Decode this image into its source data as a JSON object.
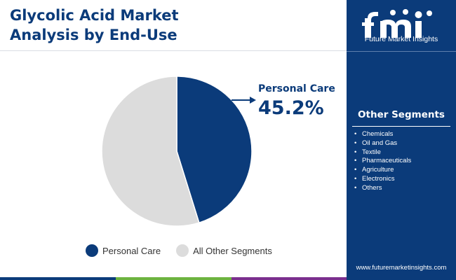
{
  "header": {
    "title_line1": "Glycolic Acid Market",
    "title_line2": "Analysis by End-Use"
  },
  "brand": {
    "name": "Future Market Insights",
    "logo_mark": "fmi",
    "website": "www.futuremarketinsights.com",
    "primary_color": "#0b3b7a"
  },
  "sidebar": {
    "title": "Other Segments",
    "items": [
      "Chemicals",
      "Oil and Gas",
      "Textile",
      "Pharmaceuticals",
      "Agriculture",
      "Electronics",
      "Others"
    ]
  },
  "callout": {
    "label": "Personal Care",
    "value": "45.2%"
  },
  "chart_data": {
    "type": "pie",
    "title": "Glycolic Acid Market Analysis by End-Use",
    "slices": [
      {
        "name": "Personal Care",
        "value": 45.2,
        "color": "#0b3b7a"
      },
      {
        "name": "All Other Segments",
        "value": 54.8,
        "color": "#dcdcdc"
      }
    ],
    "legend_position": "bottom"
  },
  "footer_colors": [
    "#0b3b7a",
    "#6db33f",
    "#7b2f8e",
    "#0b3b7a"
  ]
}
